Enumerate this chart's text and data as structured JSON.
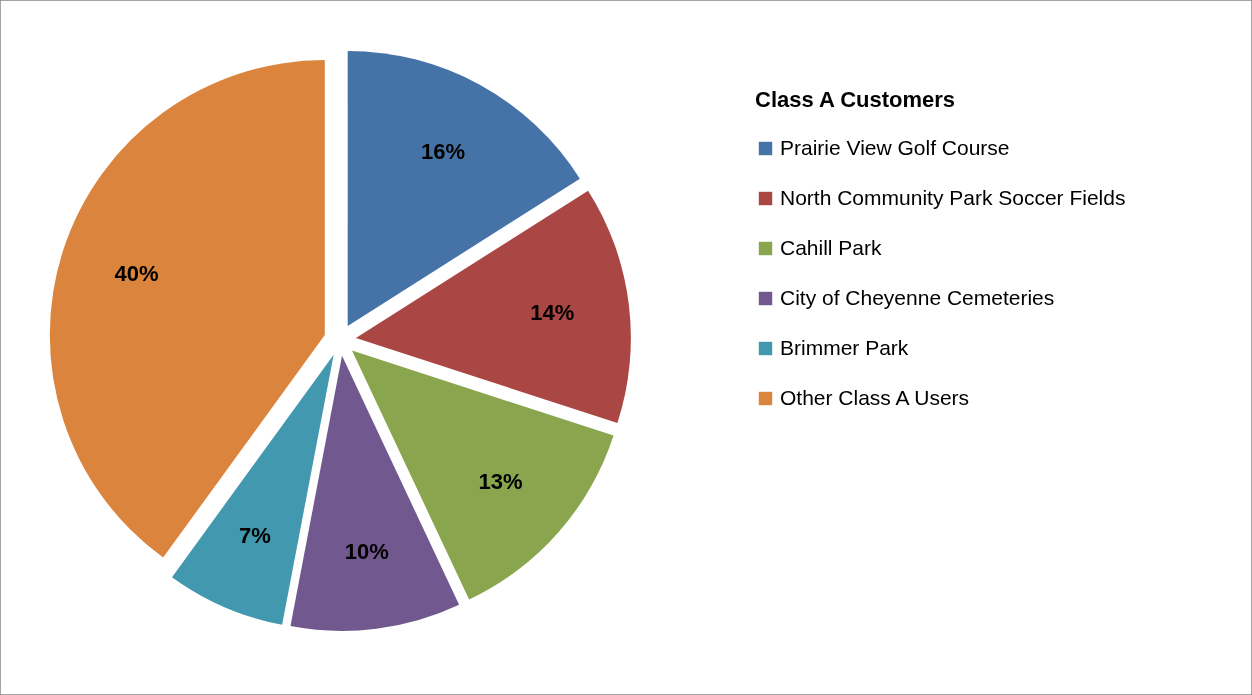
{
  "chart_data": {
    "type": "pie",
    "legend_title": "Class A Customers",
    "categories": [
      "Prairie View Golf Course",
      "North Community Park Soccer Fields",
      "Cahill Park",
      "City of Cheyenne Cemeteries",
      "Brimmer Park",
      "Other Class A Users"
    ],
    "values": [
      16,
      14,
      13,
      10,
      7,
      40
    ],
    "value_labels": [
      "16%",
      "14%",
      "13%",
      "10%",
      "7%",
      "40%"
    ],
    "colors": [
      "#4572a7",
      "#aa4643",
      "#89a54e",
      "#71588f",
      "#4198af",
      "#db843d"
    ],
    "legend": "right"
  }
}
